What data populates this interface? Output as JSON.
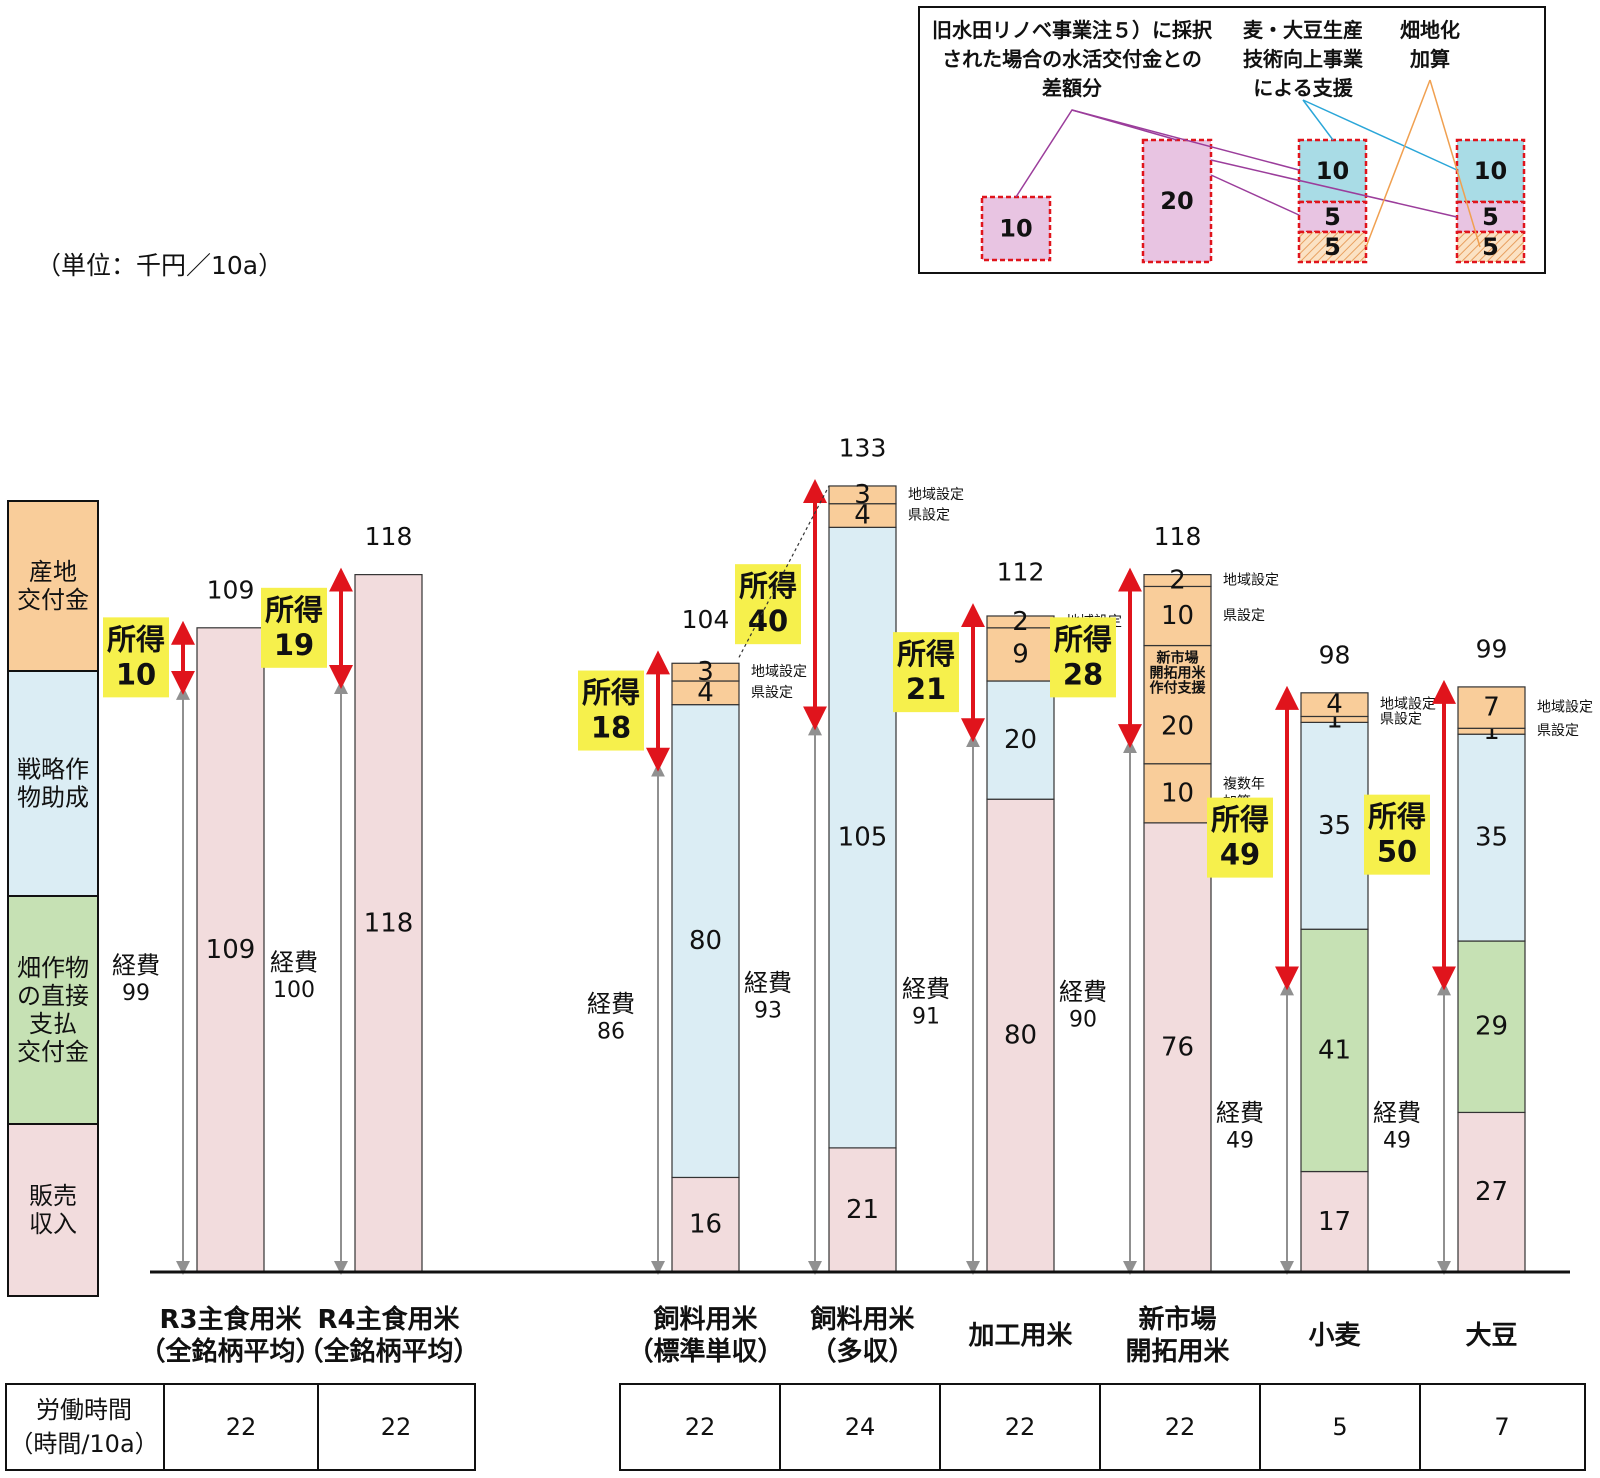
{
  "unit_label": "（単位：千円／10a）",
  "colors": {
    "sales": "#f2dcdd",
    "strategic": "#dbedf4",
    "direct": "#c6e1b4",
    "region": "#f9cd9a",
    "income_bg": "#f6f04c",
    "arrow_red": "#e0141c",
    "arrow_gray": "#909090",
    "renobe": "#e8c4e2",
    "tech": "#a9dce6",
    "dash_red": "#e0141c",
    "line_purple": "#9b3d9b",
    "line_blue": "#2aa6d8",
    "line_orange": "#f0a050"
  },
  "legend": {
    "items": [
      {
        "label": "産地\n交付金",
        "color_key": "region"
      },
      {
        "label": "戦略作\n物助成",
        "color_key": "strategic"
      },
      {
        "label": "畑作物\nの直接\n支払\n交付金",
        "color_key": "direct"
      },
      {
        "label": "販売\n収入",
        "color_key": "sales"
      }
    ]
  },
  "inset": {
    "label_renobe": [
      "旧水田リノベ事業注５）に採択",
      "された場合の水活交付金との",
      "差額分"
    ],
    "label_tech": [
      "麦・大豆生産",
      "技術向上事業",
      "による支援"
    ],
    "label_hatake": [
      "畑地化",
      "加算"
    ],
    "boxes": [
      {
        "values": [
          "10"
        ],
        "kinds": [
          "renobe"
        ]
      },
      {
        "values": [
          "20"
        ],
        "kinds": [
          "renobe"
        ]
      },
      {
        "values": [
          "10",
          "5",
          "5"
        ],
        "kinds": [
          "tech",
          "renobe",
          "hatch"
        ]
      },
      {
        "values": [
          "10",
          "5",
          "5"
        ],
        "kinds": [
          "tech",
          "renobe",
          "hatch"
        ]
      }
    ]
  },
  "chart_data": {
    "type": "bar",
    "stacked": true,
    "unit": "千円／10a",
    "categories": [
      "R3主食用米\n（全銘柄平均）",
      "R4主食用米\n（全銘柄平均）",
      "飼料用米\n（標準単収）",
      "飼料用米\n（多収）",
      "加工用米",
      "新市場\n開拓用米",
      "小麦",
      "大豆"
    ],
    "ylim": [
      0,
      133
    ],
    "bars": [
      {
        "total": 109,
        "income": 10,
        "expense": 99,
        "segments": [
          {
            "kind": "sales",
            "value": 109,
            "label": "109"
          }
        ]
      },
      {
        "total": 118,
        "income": 19,
        "expense": 100,
        "segments": [
          {
            "kind": "sales",
            "value": 118,
            "label": "118"
          }
        ]
      },
      {
        "total": 104,
        "income": 18,
        "expense": 86,
        "segments": [
          {
            "kind": "sales",
            "value": 16,
            "label": "16"
          },
          {
            "kind": "strategic",
            "value": 80,
            "label": "80"
          },
          {
            "kind": "region",
            "value": 4,
            "label": "4",
            "side": "県設定"
          },
          {
            "kind": "region",
            "value": 3,
            "label": "3",
            "side": "地域設定"
          }
        ]
      },
      {
        "total": 133,
        "income": 40,
        "expense": 93,
        "segments": [
          {
            "kind": "sales",
            "value": 21,
            "label": "21"
          },
          {
            "kind": "strategic",
            "value": 105,
            "label": "105"
          },
          {
            "kind": "region",
            "value": 4,
            "label": "4",
            "side": "県設定"
          },
          {
            "kind": "region",
            "value": 3,
            "label": "3",
            "side": "地域設定"
          }
        ]
      },
      {
        "total": 112,
        "income": 21,
        "expense": 91,
        "segments": [
          {
            "kind": "sales",
            "value": 80,
            "label": "80"
          },
          {
            "kind": "strategic",
            "value": 20,
            "label": "20"
          },
          {
            "kind": "region",
            "value": 9,
            "label": "9",
            "side": "県設定"
          },
          {
            "kind": "region",
            "value": 2,
            "label": "2",
            "side": "地域設定"
          }
        ]
      },
      {
        "total": 118,
        "income": 28,
        "expense": 90,
        "segments": [
          {
            "kind": "sales",
            "value": 76,
            "label": "76"
          },
          {
            "kind": "region",
            "value": 10,
            "label": "10",
            "side": "複数年\n加算"
          },
          {
            "kind": "region",
            "value": 20,
            "label": "20",
            "inner": "新市場\n開拓用米\n作付支援"
          },
          {
            "kind": "region",
            "value": 10,
            "label": "10",
            "side": "県設定"
          },
          {
            "kind": "region",
            "value": 2,
            "label": "2",
            "side": "地域設定"
          }
        ]
      },
      {
        "total": 98,
        "income": 49,
        "expense": 49,
        "segments": [
          {
            "kind": "sales",
            "value": 17,
            "label": "17"
          },
          {
            "kind": "direct",
            "value": 41,
            "label": "41"
          },
          {
            "kind": "strategic",
            "value": 35,
            "label": "35"
          },
          {
            "kind": "region",
            "value": 1,
            "label": "1",
            "side": "県設定"
          },
          {
            "kind": "region",
            "value": 4,
            "label": "4",
            "side": "地域設定"
          }
        ]
      },
      {
        "total": 99,
        "income": 50,
        "expense": 49,
        "segments": [
          {
            "kind": "sales",
            "value": 27,
            "label": "27"
          },
          {
            "kind": "direct",
            "value": 29,
            "label": "29"
          },
          {
            "kind": "strategic",
            "value": 35,
            "label": "35"
          },
          {
            "kind": "region",
            "value": 1,
            "label": "1",
            "side": "県設定"
          },
          {
            "kind": "region",
            "value": 7,
            "label": "7",
            "side": "地域設定"
          }
        ]
      }
    ],
    "income_label": "所得",
    "expense_label": "経費"
  },
  "labor_table": {
    "header": "労働時間\n（時間/10a）",
    "values": [
      "22",
      "22",
      "22",
      "24",
      "22",
      "22",
      "5",
      "7"
    ]
  }
}
